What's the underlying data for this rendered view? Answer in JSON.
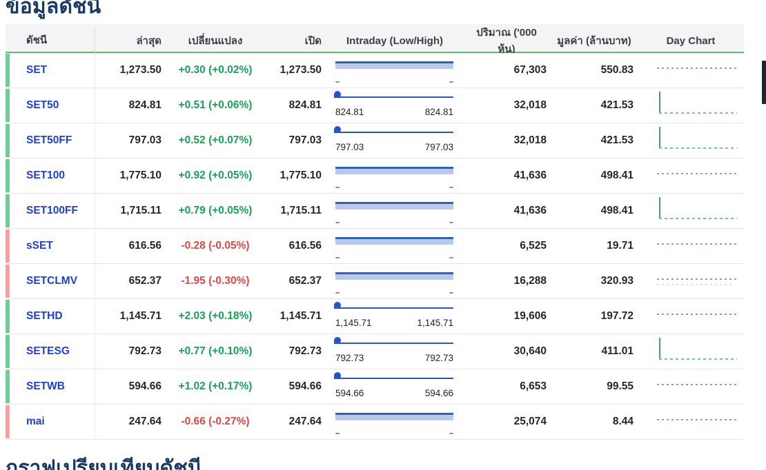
{
  "page": {
    "title_top": "ข้อมูลดัชนี",
    "title_bottom": "กราฟเปรียบเทียบดัชนี"
  },
  "colors": {
    "title_navy": "#1b3a63",
    "link_blue": "#1e3fd6",
    "up_green_text": "#17a355",
    "down_red_text": "#e24744",
    "row_bar_up": "#6fce91",
    "row_bar_down": "#f7a1a1",
    "header_underline_green": "#5cbd63",
    "intraday_band_dark": "#3560b2",
    "intraday_band_light": "#b9c8ed",
    "intraday_marker_blue": "#2355c8",
    "daychart_dotted_gray": "#939ba4",
    "daychart_spike_green": "#43a563"
  },
  "table": {
    "headers": [
      "ดัชนี",
      "ล่าสุด",
      "เปลี่ยนแปลง",
      "เปิด",
      "Intraday (Low/High)",
      "ปริมาณ ('000 หุ้น)",
      "มูลค่า (ล้านบาท)",
      "Day Chart"
    ],
    "rows": [
      {
        "index": "SET",
        "last": "1,273.50",
        "change": "+0.30 (+0.02%)",
        "direction": "up",
        "open": "1,273.50",
        "intraday": {
          "style": "band",
          "low": "–",
          "high": "–"
        },
        "volume": "67,303",
        "value": "550.83",
        "day_chart": "dotted"
      },
      {
        "index": "SET50",
        "last": "824.81",
        "change": "+0.51 (+0.06%)",
        "direction": "up",
        "open": "824.81",
        "intraday": {
          "style": "marker",
          "low": "824.81",
          "high": "824.81"
        },
        "volume": "32,018",
        "value": "421.53",
        "day_chart": "spike"
      },
      {
        "index": "SET50FF",
        "last": "797.03",
        "change": "+0.52 (+0.07%)",
        "direction": "up",
        "open": "797.03",
        "intraday": {
          "style": "marker",
          "low": "797.03",
          "high": "797.03"
        },
        "volume": "32,018",
        "value": "421.53",
        "day_chart": "spike"
      },
      {
        "index": "SET100",
        "last": "1,775.10",
        "change": "+0.92 (+0.05%)",
        "direction": "up",
        "open": "1,775.10",
        "intraday": {
          "style": "band",
          "low": "–",
          "high": "–"
        },
        "volume": "41,636",
        "value": "498.41",
        "day_chart": "dotted"
      },
      {
        "index": "SET100FF",
        "last": "1,715.11",
        "change": "+0.79 (+0.05%)",
        "direction": "up",
        "open": "1,715.11",
        "intraday": {
          "style": "band",
          "low": "–",
          "high": "–"
        },
        "volume": "41,636",
        "value": "498.41",
        "day_chart": "spike"
      },
      {
        "index": "sSET",
        "last": "616.56",
        "change": "-0.28 (-0.05%)",
        "direction": "down",
        "open": "616.56",
        "intraday": {
          "style": "band",
          "low": "–",
          "high": "–"
        },
        "volume": "6,525",
        "value": "19.71",
        "day_chart": "dotted"
      },
      {
        "index": "SETCLMV",
        "last": "652.37",
        "change": "-1.95 (-0.30%)",
        "direction": "down",
        "open": "652.37",
        "intraday": {
          "style": "band",
          "low": "–",
          "high": "–"
        },
        "volume": "16,288",
        "value": "320.93",
        "day_chart": "dotted-double"
      },
      {
        "index": "SETHD",
        "last": "1,145.71",
        "change": "+2.03 (+0.18%)",
        "direction": "up",
        "open": "1,145.71",
        "intraday": {
          "style": "marker",
          "low": "1,145.71",
          "high": "1,145.71"
        },
        "volume": "19,606",
        "value": "197.72",
        "day_chart": "dotted"
      },
      {
        "index": "SETESG",
        "last": "792.73",
        "change": "+0.77 (+0.10%)",
        "direction": "up",
        "open": "792.73",
        "intraday": {
          "style": "marker",
          "low": "792.73",
          "high": "792.73"
        },
        "volume": "30,640",
        "value": "411.01",
        "day_chart": "spike"
      },
      {
        "index": "SETWB",
        "last": "594.66",
        "change": "+1.02 (+0.17%)",
        "direction": "up",
        "open": "594.66",
        "intraday": {
          "style": "marker",
          "low": "594.66",
          "high": "594.66"
        },
        "volume": "6,653",
        "value": "99.55",
        "day_chart": "dotted"
      },
      {
        "index": "mai",
        "last": "247.64",
        "change": "-0.66 (-0.27%)",
        "direction": "down",
        "open": "247.64",
        "intraday": {
          "style": "band",
          "low": "–",
          "high": "–"
        },
        "volume": "25,074",
        "value": "8.44",
        "day_chart": "dotted"
      }
    ]
  }
}
